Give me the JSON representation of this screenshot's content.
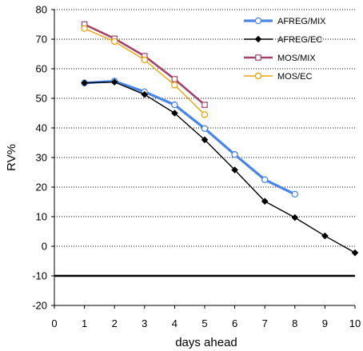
{
  "chart_data": {
    "type": "line",
    "xlabel": "days ahead",
    "ylabel": "RV%",
    "xlim": [
      0,
      10
    ],
    "ylim": [
      -20,
      80
    ],
    "xticks": [
      "0",
      "1",
      "2",
      "3",
      "4",
      "5",
      "6",
      "7",
      "8",
      "9",
      "10"
    ],
    "yticks": [
      "-20",
      "-10",
      "0",
      "10",
      "20",
      "30",
      "40",
      "50",
      "60",
      "70",
      "80"
    ],
    "grid": "horizontal dotted",
    "legend_position": "top-right",
    "reference_line": -10,
    "series": [
      {
        "name": "AFREG/MIX",
        "color": "#4a86e8",
        "marker": "circle",
        "x": [
          1,
          2,
          3,
          4,
          5,
          6,
          7,
          8
        ],
        "y": [
          55.2,
          55.8,
          52.2,
          47.8,
          39.8,
          31.0,
          22.5,
          17.6
        ]
      },
      {
        "name": "AFREG/EC",
        "color": "#000000",
        "marker": "diamond",
        "x": [
          1,
          2,
          3,
          4,
          5,
          6,
          7,
          8,
          9,
          10
        ],
        "y": [
          55.2,
          55.5,
          51.3,
          45.0,
          36.0,
          25.8,
          15.2,
          9.7,
          3.5,
          -2.2
        ]
      },
      {
        "name": "MOS/MIX",
        "color": "#a0446e",
        "marker": "square",
        "x": [
          1,
          2,
          3,
          4,
          5
        ],
        "y": [
          75.0,
          70.2,
          64.3,
          56.5,
          47.8
        ]
      },
      {
        "name": "MOS/EC",
        "color": "#f0a30a",
        "marker": "circle",
        "x": [
          1,
          2,
          3,
          4,
          5
        ],
        "y": [
          73.6,
          69.2,
          63.0,
          54.5,
          44.5
        ]
      }
    ]
  }
}
